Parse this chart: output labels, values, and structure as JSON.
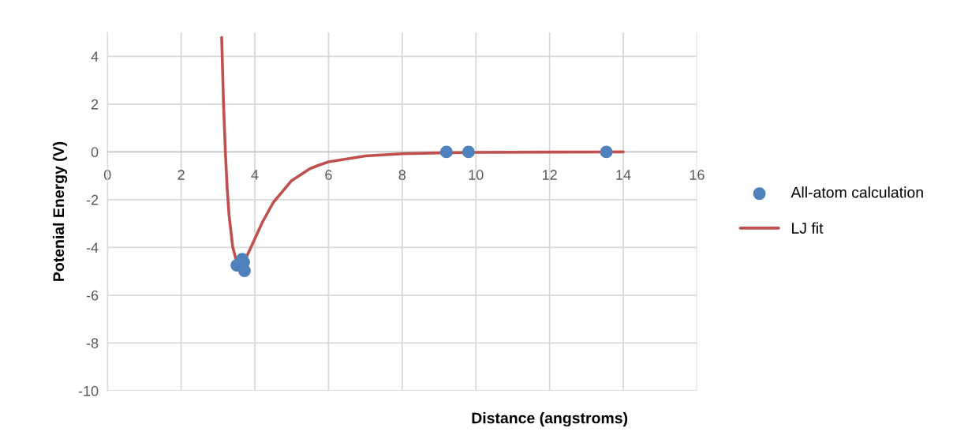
{
  "chart_data": {
    "type": "scatter",
    "xlabel": "Distance (angstroms)",
    "ylabel": "Potenial Energy (V)",
    "xlim": [
      0,
      16
    ],
    "xticks": [
      0,
      2,
      4,
      6,
      8,
      10,
      12,
      14,
      16
    ],
    "ylim": [
      -10,
      5
    ],
    "yticks": [
      -10,
      -8,
      -6,
      -4,
      -2,
      0,
      2,
      4
    ],
    "grid": true,
    "legend": "right",
    "series": [
      {
        "name": "All-atom calculation",
        "marker": "circle",
        "color": "#4f81bd",
        "x": [
          3.51,
          3.66,
          3.7,
          3.72,
          9.2,
          9.8,
          13.54
        ],
        "values": [
          -4.75,
          -4.49,
          -4.62,
          -4.98,
          0,
          0,
          0
        ]
      },
      {
        "name": "LJ fit",
        "type": "line",
        "marker": "none",
        "line_style": "solid",
        "color": "#c0504d",
        "x": [
          3.1,
          3.15,
          3.2,
          3.25,
          3.3,
          3.4,
          3.5,
          3.6,
          3.7,
          3.8,
          4.0,
          4.2,
          4.5,
          5,
          5.5,
          5.75,
          6,
          7,
          8,
          9,
          10,
          12,
          14
        ],
        "values": [
          4.8,
          2.05,
          0,
          -1.52,
          -2.64,
          -3.98,
          -4.57,
          -4.7,
          -4.58,
          -4.31,
          -3.64,
          -2.96,
          -2.12,
          -1.2,
          -0.7,
          -0.55,
          -0.42,
          -0.17,
          -0.08,
          -0.04,
          -0.02,
          -0.01,
          0
        ]
      }
    ]
  }
}
